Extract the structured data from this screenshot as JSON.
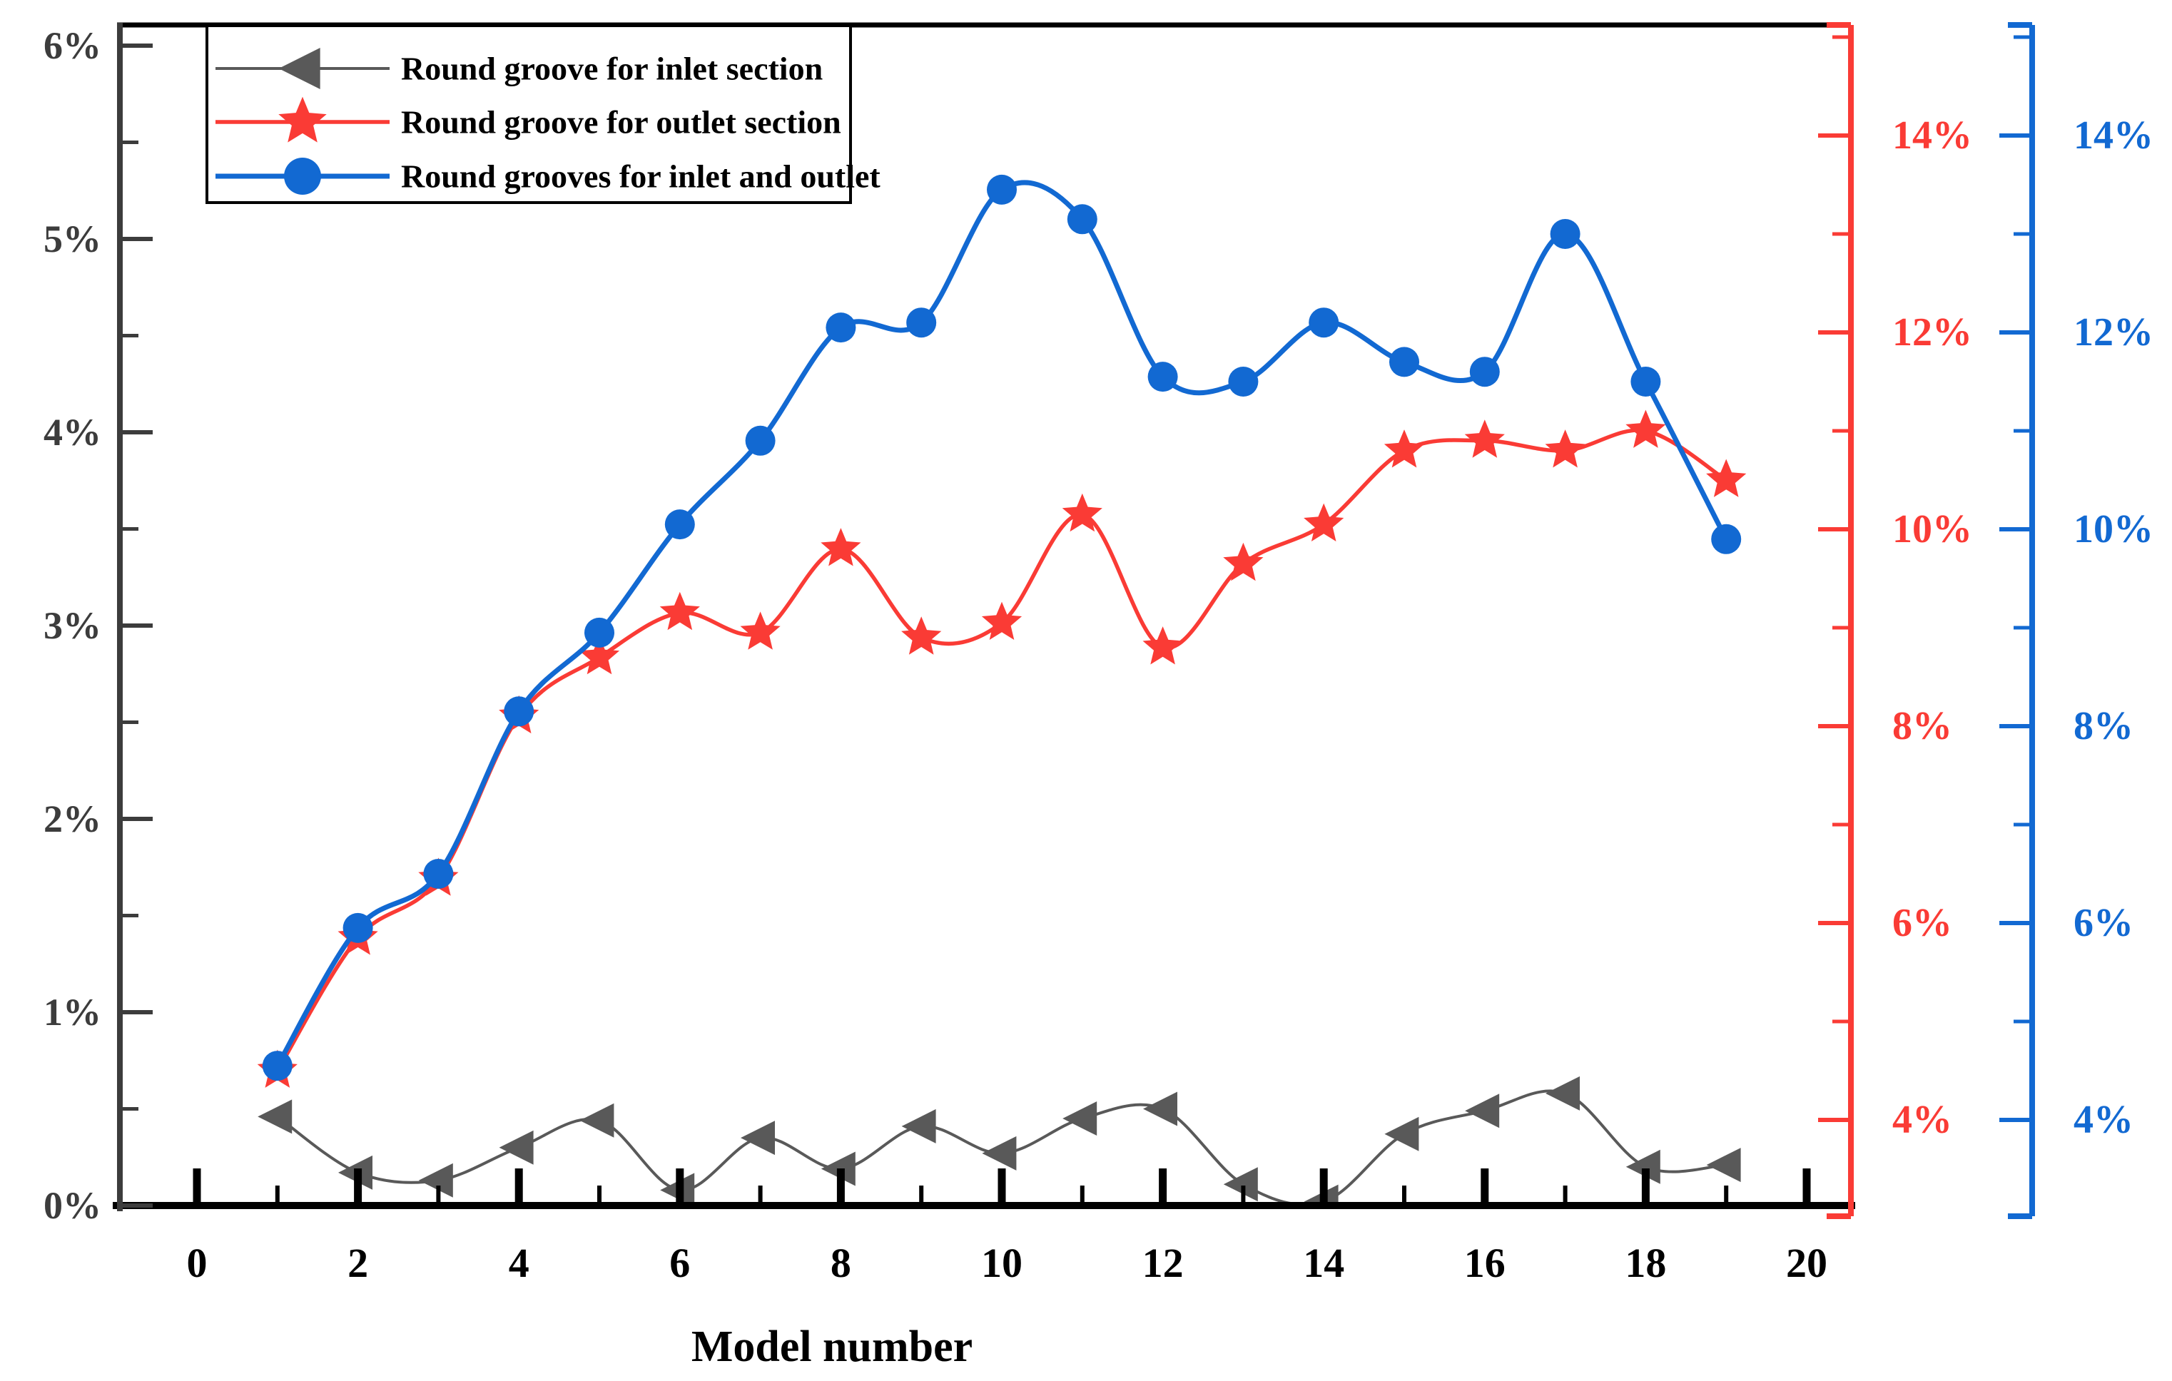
{
  "figure": {
    "background": "#ffffff"
  },
  "chart_data": {
    "type": "line",
    "title": "",
    "xlabel": "Model number",
    "x": [
      1,
      2,
      3,
      4,
      5,
      6,
      7,
      8,
      9,
      10,
      11,
      12,
      13,
      14,
      15,
      16,
      17,
      18,
      19
    ],
    "series": [
      {
        "name": "Round groove for inlet section",
        "axis": "left",
        "color": "#595959",
        "marker": "triangle-left",
        "values": [
          0.46,
          0.17,
          0.13,
          0.3,
          0.44,
          0.08,
          0.35,
          0.19,
          0.41,
          0.27,
          0.45,
          0.5,
          0.11,
          0.02,
          0.37,
          0.49,
          0.58,
          0.2,
          0.21
        ]
      },
      {
        "name": "Round groove for outlet section",
        "axis": "right",
        "color": "#fa3b35",
        "marker": "star",
        "values": [
          4.5,
          5.85,
          6.45,
          8.1,
          8.7,
          9.15,
          8.95,
          9.8,
          8.9,
          9.05,
          10.15,
          8.8,
          9.65,
          10.05,
          10.8,
          10.9,
          10.8,
          11.0,
          10.5
        ]
      },
      {
        "name": "Round grooves for inlet and outlet",
        "axis": "right",
        "color": "#1269d2",
        "marker": "circle",
        "values": [
          4.55,
          5.95,
          6.5,
          8.15,
          8.95,
          10.05,
          10.9,
          12.05,
          12.1,
          13.45,
          13.15,
          11.55,
          11.5,
          12.1,
          11.7,
          11.6,
          13.0,
          11.5,
          9.9
        ]
      }
    ],
    "left_axis": {
      "min": 0,
      "max": 6,
      "major_step": 1,
      "minor_step": 0.5,
      "tick_labels": [
        "0%",
        "1%",
        "2%",
        "3%",
        "4%",
        "5%",
        "6%"
      ],
      "color": "#3c3c3c"
    },
    "right_axis_red": {
      "min": 4,
      "max": 14,
      "major_step": 2,
      "minor_step": 1,
      "tick_labels": [
        "4%",
        "6%",
        "8%",
        "10%",
        "12%",
        "14%"
      ],
      "color": "#fa3b35"
    },
    "right_axis_blue": {
      "min": 4,
      "max": 14,
      "major_step": 2,
      "minor_step": 1,
      "tick_labels": [
        "4%",
        "6%",
        "8%",
        "10%",
        "12%",
        "14%"
      ],
      "color": "#1269d2"
    },
    "x_axis": {
      "min": 0,
      "max": 20,
      "major_step": 2,
      "minor_step": 1,
      "tick_labels": [
        "0",
        "2",
        "4",
        "6",
        "8",
        "10",
        "12",
        "14",
        "16",
        "18",
        "20"
      ],
      "color": "#000000"
    },
    "legend": {
      "items": [
        "Round groove for inlet section",
        "Round groove for outlet section",
        "Round grooves for inlet and outlet"
      ],
      "text_color": "#000000",
      "border_color": "#000000"
    },
    "grid": false,
    "legend_position": "top-left"
  }
}
